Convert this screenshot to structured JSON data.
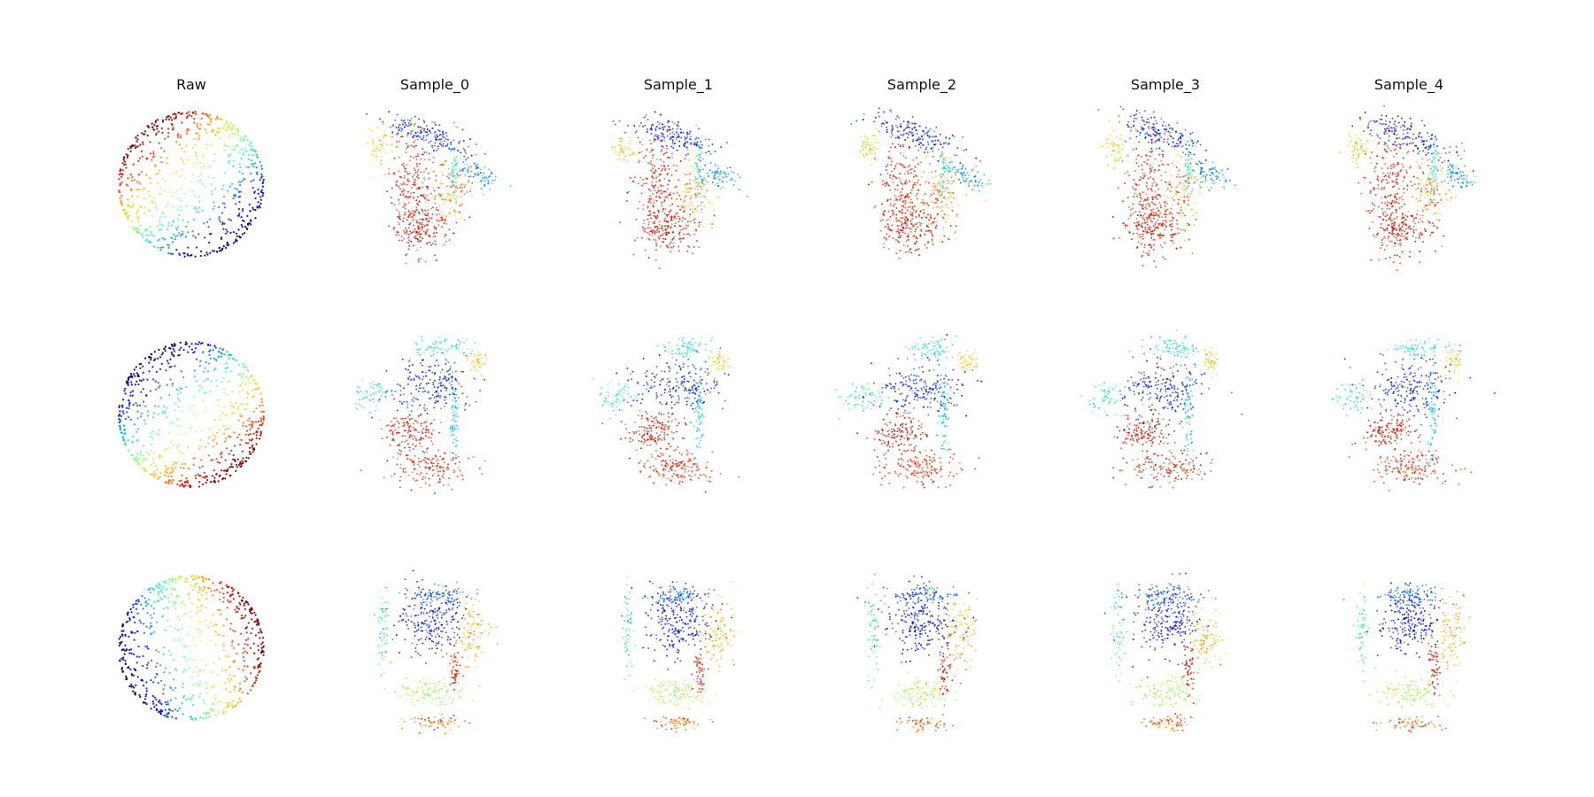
{
  "figure": {
    "columns": [
      {
        "id": "raw",
        "title": "Raw"
      },
      {
        "id": "sample-0",
        "title": "Sample_0"
      },
      {
        "id": "sample-1",
        "title": "Sample_1"
      },
      {
        "id": "sample-2",
        "title": "Sample_2"
      },
      {
        "id": "sample-3",
        "title": "Sample_3"
      },
      {
        "id": "sample-4",
        "title": "Sample_4"
      }
    ],
    "rows": [
      {
        "id": "row-1"
      },
      {
        "id": "row-2"
      },
      {
        "id": "row-3"
      }
    ],
    "colormap": "jet",
    "colormap_stops": [
      "#00007f",
      "#0000ff",
      "#00a5ff",
      "#3fffb7",
      "#b7ff3f",
      "#ffb900",
      "#ff2000",
      "#7f0000"
    ]
  }
}
